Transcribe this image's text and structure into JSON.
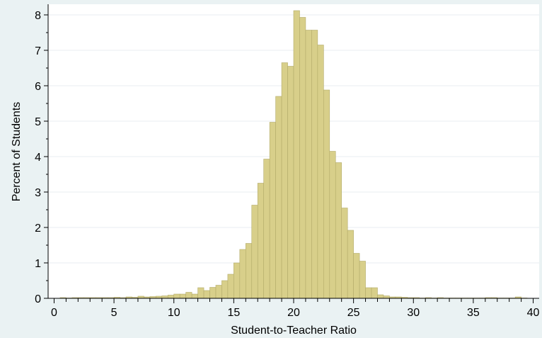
{
  "chart_data": {
    "type": "bar",
    "title": "",
    "xlabel": "Student-to-Teacher Ratio",
    "ylabel": "Percent of Students",
    "xlim": [
      -0.5,
      40.5
    ],
    "ylim": [
      0,
      8.3
    ],
    "bin_width": 0.5,
    "grid": true,
    "legend": "none",
    "x_ticks": [
      "0",
      "5",
      "10",
      "15",
      "20",
      "25",
      "30",
      "35",
      "40"
    ],
    "y_ticks": [
      "0",
      "1",
      "2",
      "3",
      "4",
      "5",
      "6",
      "7",
      "8"
    ],
    "bin_starts": [
      0.5,
      1,
      1.5,
      2,
      2.5,
      3,
      3.5,
      4,
      4.5,
      5,
      5.5,
      6,
      6.5,
      7,
      7.5,
      8,
      8.5,
      9,
      9.5,
      10,
      10.5,
      11,
      11.5,
      12,
      12.5,
      13,
      13.5,
      14,
      14.5,
      15,
      15.5,
      16,
      16.5,
      17,
      17.5,
      18,
      18.5,
      19,
      19.5,
      20,
      20.5,
      21,
      21.5,
      22,
      22.5,
      23,
      23.5,
      24,
      24.5,
      25,
      25.5,
      26,
      26.5,
      27,
      27.5,
      28,
      28.5,
      29,
      29.5,
      30,
      30.5,
      31,
      31.5,
      32,
      32.5,
      33,
      33.5,
      34,
      34.5,
      35,
      35.5,
      36,
      36.5,
      37,
      37.5,
      38,
      38.5,
      39
    ],
    "values": [
      0.02,
      0.01,
      0.02,
      0.02,
      0.02,
      0.02,
      0.02,
      0.02,
      0.02,
      0.03,
      0.02,
      0.04,
      0.03,
      0.06,
      0.04,
      0.05,
      0.06,
      0.07,
      0.09,
      0.12,
      0.12,
      0.17,
      0.12,
      0.3,
      0.22,
      0.31,
      0.37,
      0.5,
      0.68,
      1.0,
      1.38,
      1.55,
      2.63,
      3.25,
      3.93,
      4.97,
      5.7,
      6.65,
      6.55,
      8.12,
      7.93,
      7.57,
      7.57,
      7.15,
      5.88,
      4.15,
      3.83,
      2.55,
      1.92,
      1.27,
      1.05,
      0.3,
      0.3,
      0.1,
      0.07,
      0.04,
      0.04,
      0.03,
      0.02,
      0.02,
      0.01,
      0.02,
      0.01,
      0.02,
      0.01,
      0.01,
      0.01,
      0.01,
      0.01,
      0.01,
      0.01,
      0.02,
      0.02,
      0.01,
      0.01,
      0.01,
      0.04,
      0.01
    ],
    "colors": {
      "bar_fill": "#d8cf8a",
      "bar_stroke": "#b3ab6a",
      "plot_bg": "#ffffff",
      "page_bg": "#eaf2f3",
      "grid": "#e8edf0",
      "axis": "#000000"
    }
  }
}
